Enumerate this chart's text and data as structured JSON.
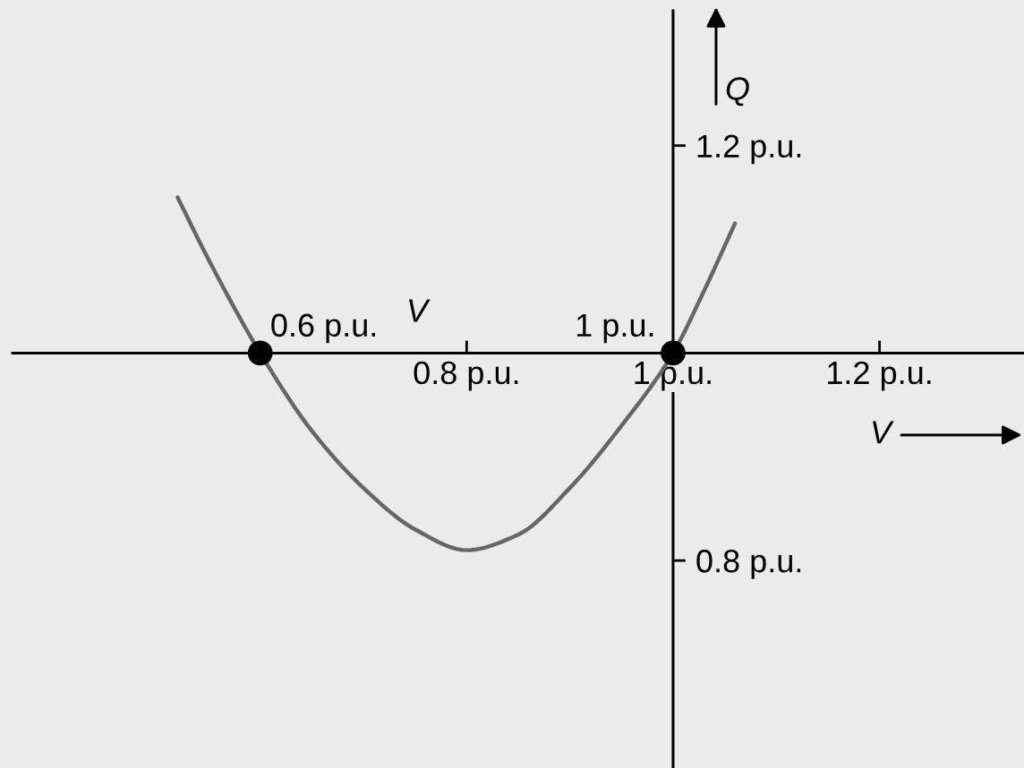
{
  "chart_data": {
    "type": "line",
    "xlabel": "V",
    "ylabel": "Q",
    "annotations": [
      "V",
      {
        "text": "0.6 p.u.",
        "x": 0.6,
        "y": 1.0
      },
      {
        "text": "1 p.u.",
        "x": 1.0,
        "y": 1.0
      }
    ],
    "xlim": [
      0.36,
      1.34
    ],
    "ylim": [
      0.6,
      1.33
    ],
    "xticks": [
      {
        "value": 0.8,
        "label": "0.8 p.u."
      },
      {
        "value": 1.0,
        "label": "1 p.u."
      },
      {
        "value": 1.2,
        "label": "1.2 p.u."
      }
    ],
    "yticks": [
      {
        "value": 0.8,
        "label": "0.8 p.u."
      },
      {
        "value": 1.2,
        "label": "1.2 p.u."
      }
    ],
    "grid": false,
    "series": [
      {
        "color": "#666666",
        "x": [
          0.52,
          0.55,
          0.6,
          0.65,
          0.7,
          0.75,
          0.8,
          0.85,
          0.9,
          0.95,
          1.0,
          1.03,
          1.06
        ],
        "values": [
          1.15,
          1.09,
          1.0,
          0.925,
          0.87,
          0.83,
          0.81,
          0.825,
          0.87,
          0.93,
          1.0,
          1.06,
          1.125
        ]
      },
      {
        "type": "scatter",
        "color": "#000000",
        "marker": "circle",
        "x": [
          0.6,
          1.0
        ],
        "values": [
          1.0,
          1.0
        ]
      }
    ]
  }
}
